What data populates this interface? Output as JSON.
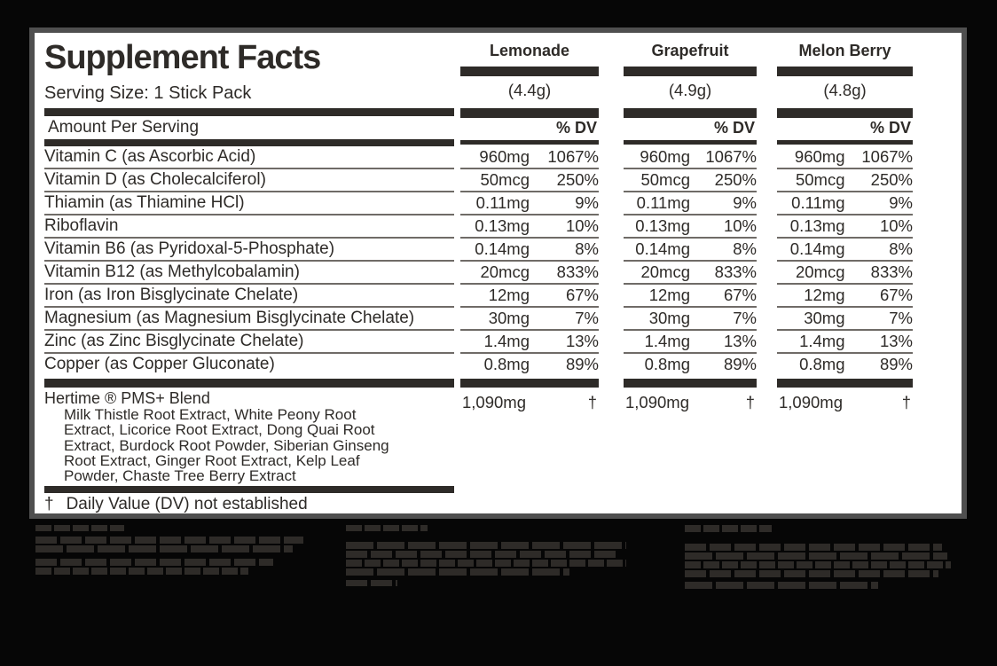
{
  "panel": {
    "title": "Supplement Facts",
    "serving_size": "Serving Size: 1 Stick Pack",
    "amount_per_serving": "Amount Per Serving",
    "dv_header": "% DV",
    "flavors": [
      {
        "name": "Lemonade",
        "weight": "(4.4g)"
      },
      {
        "name": "Grapefruit",
        "weight": "(4.9g)"
      },
      {
        "name": "Melon Berry",
        "weight": "(4.8g)"
      }
    ],
    "rows": [
      {
        "label": "Vitamin C (as Ascorbic Acid)",
        "amount": "960mg",
        "dv": "1067%"
      },
      {
        "label": "Vitamin D (as Cholecalciferol)",
        "amount": "50mcg",
        "dv": "250%"
      },
      {
        "label": "Thiamin (as Thiamine HCl)",
        "amount": "0.11mg",
        "dv": "9%"
      },
      {
        "label": "Riboflavin",
        "amount": "0.13mg",
        "dv": "10%"
      },
      {
        "label": "Vitamin B6 (as Pyridoxal-5-Phosphate)",
        "amount": "0.14mg",
        "dv": "8%"
      },
      {
        "label": "Vitamin B12 (as Methylcobalamin)",
        "amount": "20mcg",
        "dv": "833%"
      },
      {
        "label": "Iron (as Iron Bisglycinate Chelate)",
        "amount": "12mg",
        "dv": "67%"
      },
      {
        "label": "Magnesium (as Magnesium Bisglycinate Chelate)",
        "amount": "30mg",
        "dv": "7%"
      },
      {
        "label": "Zinc (as Zinc Bisglycinate Chelate)",
        "amount": "1.4mg",
        "dv": "13%"
      },
      {
        "label": "Copper (as Copper Gluconate)",
        "amount": "0.8mg",
        "dv": "89%"
      }
    ],
    "blend": {
      "title": "Hertime ® PMS+ Blend",
      "ingredients": "Milk Thistle Root Extract, White Peony Root Extract, Licorice Root Extract, Dong Quai Root Extract, Burdock Root Powder, Siberian Ginseng Root Extract, Ginger Root Extract, Kelp Leaf Powder, Chaste Tree Berry Extract",
      "amount": "1,090mg",
      "dv": "†"
    },
    "footnote": {
      "dagger": "†",
      "text": "Daily Value (DV) not established"
    }
  },
  "colors": {
    "background": "#060606",
    "panel": "#ffffff",
    "ink": "#2e2b28",
    "rule_line": "#6f6b67",
    "panel_border": "#4f4f4f"
  }
}
